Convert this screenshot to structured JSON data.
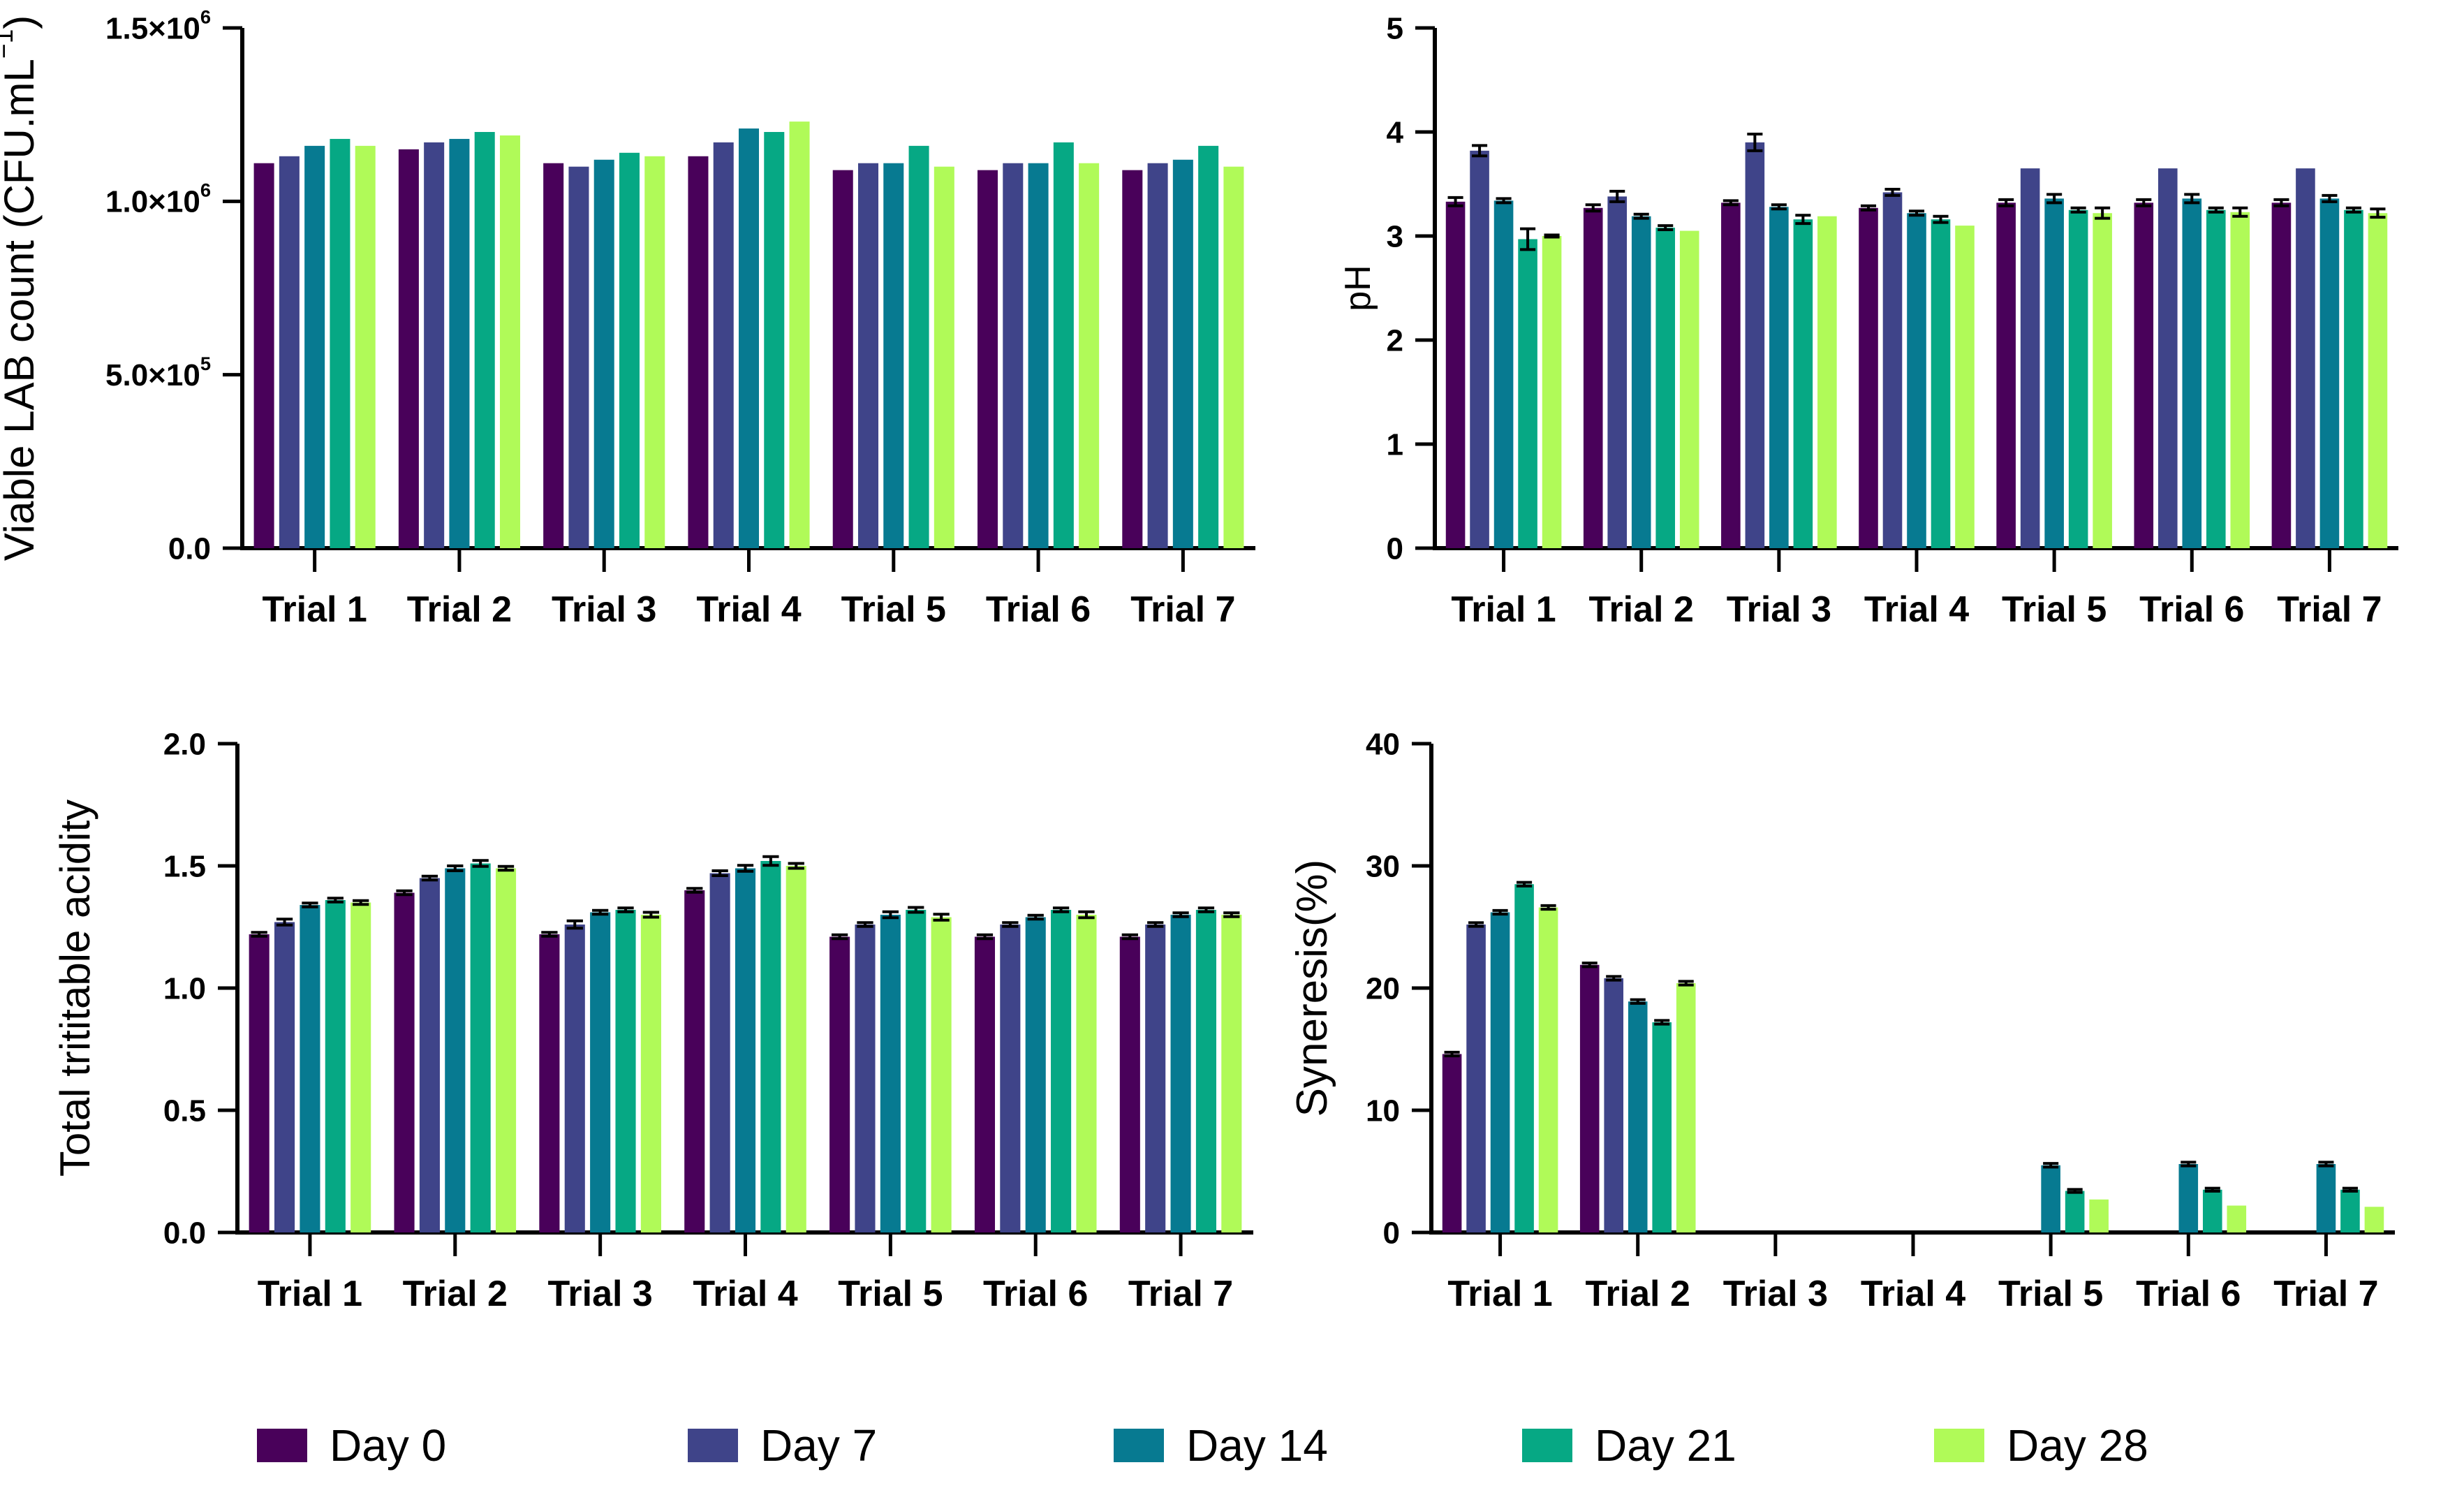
{
  "figure": {
    "background": "#ffffff"
  },
  "legend": {
    "position": "bottom",
    "items": [
      {
        "label": "Day 0",
        "color": "#49015A"
      },
      {
        "label": "Day 7",
        "color": "#3F4489"
      },
      {
        "label": "Day 14",
        "color": "#077A91"
      },
      {
        "label": "Day 21",
        "color": "#06A884"
      },
      {
        "label": "Day 28",
        "color": "#B0FA58"
      }
    ]
  },
  "chart_data": [
    {
      "type": "bar",
      "title_parts": [
        {
          "t": "Viable LAB count (CFU.mL"
        },
        {
          "t": "−1",
          "sup": true
        },
        {
          "t": ")"
        }
      ],
      "categories": [
        "Trial 1",
        "Trial 2",
        "Trial 3",
        "Trial 4",
        "Trial 5",
        "Trial 6",
        "Trial 7"
      ],
      "ylim": [
        0,
        1500000
      ],
      "grid": false,
      "yticks": [
        {
          "v": 0,
          "parts": [
            {
              "t": "0.0"
            }
          ]
        },
        {
          "v": 500000,
          "parts": [
            {
              "t": "5.0×10"
            },
            {
              "t": "5",
              "sup": true
            }
          ]
        },
        {
          "v": 1000000,
          "parts": [
            {
              "t": "1.0×10"
            },
            {
              "t": "6",
              "sup": true
            }
          ]
        },
        {
          "v": 1500000,
          "parts": [
            {
              "t": "1.5×10"
            },
            {
              "t": "6",
              "sup": true
            }
          ]
        }
      ],
      "series": [
        {
          "name": "Day 0",
          "values": [
            1110000,
            1150000,
            1110000,
            1130000,
            1090000,
            1090000,
            1090000
          ]
        },
        {
          "name": "Day 7",
          "values": [
            1130000,
            1170000,
            1100000,
            1170000,
            1110000,
            1110000,
            1110000
          ]
        },
        {
          "name": "Day 14",
          "values": [
            1160000,
            1180000,
            1120000,
            1210000,
            1110000,
            1110000,
            1120000
          ]
        },
        {
          "name": "Day 21",
          "values": [
            1180000,
            1200000,
            1140000,
            1200000,
            1160000,
            1170000,
            1160000
          ]
        },
        {
          "name": "Day 28",
          "values": [
            1160000,
            1190000,
            1130000,
            1230000,
            1100000,
            1110000,
            1100000
          ]
        }
      ]
    },
    {
      "type": "bar",
      "title_parts": [
        {
          "t": "pH"
        }
      ],
      "categories": [
        "Trial 1",
        "Trial 2",
        "Trial 3",
        "Trial 4",
        "Trial 5",
        "Trial 6",
        "Trial 7"
      ],
      "ylim": [
        0,
        5
      ],
      "grid": false,
      "yticks": [
        {
          "v": 0,
          "parts": [
            {
              "t": "0"
            }
          ]
        },
        {
          "v": 1,
          "parts": [
            {
              "t": "1"
            }
          ]
        },
        {
          "v": 2,
          "parts": [
            {
              "t": "2"
            }
          ]
        },
        {
          "v": 3,
          "parts": [
            {
              "t": "3"
            }
          ]
        },
        {
          "v": 4,
          "parts": [
            {
              "t": "4"
            }
          ]
        },
        {
          "v": 5,
          "parts": [
            {
              "t": "5"
            }
          ]
        }
      ],
      "series": [
        {
          "name": "Day 0",
          "values": [
            3.33,
            3.27,
            3.32,
            3.27,
            3.32,
            3.32,
            3.32
          ],
          "errors": [
            0.04,
            0.03,
            0.02,
            0.02,
            0.03,
            0.03,
            0.03
          ]
        },
        {
          "name": "Day 7",
          "values": [
            3.82,
            3.38,
            3.9,
            3.42,
            3.65,
            3.65,
            3.65
          ],
          "errors": [
            0.05,
            0.05,
            0.08,
            0.03,
            0,
            0,
            0
          ]
        },
        {
          "name": "Day 14",
          "values": [
            3.34,
            3.19,
            3.28,
            3.22,
            3.36,
            3.36,
            3.36
          ],
          "errors": [
            0.02,
            0.02,
            0.02,
            0.02,
            0.04,
            0.04,
            0.03
          ]
        },
        {
          "name": "Day 21",
          "values": [
            2.97,
            3.08,
            3.16,
            3.16,
            3.25,
            3.25,
            3.25
          ],
          "errors": [
            0.1,
            0.02,
            0.04,
            0.03,
            0.02,
            0.02,
            0.02
          ]
        },
        {
          "name": "Day 28",
          "values": [
            3.0,
            3.05,
            3.19,
            3.1,
            3.22,
            3.23,
            3.22
          ],
          "errors": [
            0.01,
            0,
            0,
            0,
            0.05,
            0.04,
            0.04
          ]
        }
      ]
    },
    {
      "type": "bar",
      "title_parts": [
        {
          "t": "Total trititable acidity"
        }
      ],
      "categories": [
        "Trial 1",
        "Trial 2",
        "Trial 3",
        "Trial 4",
        "Trial 5",
        "Trial 6",
        "Trial 7"
      ],
      "ylim": [
        0,
        2
      ],
      "grid": false,
      "yticks": [
        {
          "v": 0,
          "parts": [
            {
              "t": "0.0"
            }
          ]
        },
        {
          "v": 0.5,
          "parts": [
            {
              "t": "0.5"
            }
          ]
        },
        {
          "v": 1.0,
          "parts": [
            {
              "t": "1.0"
            }
          ]
        },
        {
          "v": 1.5,
          "parts": [
            {
              "t": "1.5"
            }
          ]
        },
        {
          "v": 2.0,
          "parts": [
            {
              "t": "2.0"
            }
          ]
        }
      ],
      "series": [
        {
          "name": "Day 0",
          "values": [
            1.22,
            1.39,
            1.22,
            1.4,
            1.21,
            1.21,
            1.21
          ],
          "errors": [
            0.008,
            0.008,
            0.008,
            0.008,
            0.008,
            0.008,
            0.008
          ]
        },
        {
          "name": "Day 7",
          "values": [
            1.27,
            1.45,
            1.26,
            1.47,
            1.26,
            1.26,
            1.26
          ],
          "errors": [
            0.012,
            0.008,
            0.015,
            0.01,
            0.008,
            0.008,
            0.008
          ]
        },
        {
          "name": "Day 14",
          "values": [
            1.34,
            1.49,
            1.31,
            1.49,
            1.3,
            1.29,
            1.3
          ],
          "errors": [
            0.008,
            0.01,
            0.008,
            0.012,
            0.012,
            0.008,
            0.008
          ]
        },
        {
          "name": "Day 21",
          "values": [
            1.36,
            1.51,
            1.32,
            1.52,
            1.32,
            1.32,
            1.32
          ],
          "errors": [
            0.008,
            0.012,
            0.008,
            0.018,
            0.01,
            0.008,
            0.008
          ]
        },
        {
          "name": "Day 28",
          "values": [
            1.35,
            1.49,
            1.3,
            1.5,
            1.29,
            1.3,
            1.3
          ],
          "errors": [
            0.008,
            0.008,
            0.01,
            0.01,
            0.012,
            0.012,
            0.008
          ]
        }
      ]
    },
    {
      "type": "bar",
      "title_parts": [
        {
          "t": "Syneresis(%)"
        }
      ],
      "categories": [
        "Trial 1",
        "Trial 2",
        "Trial 3",
        "Trial 4",
        "Trial 5",
        "Trial 6",
        "Trial 7"
      ],
      "ylim": [
        0,
        40
      ],
      "grid": false,
      "yticks": [
        {
          "v": 0,
          "parts": [
            {
              "t": "0"
            }
          ]
        },
        {
          "v": 10,
          "parts": [
            {
              "t": "10"
            }
          ]
        },
        {
          "v": 20,
          "parts": [
            {
              "t": "20"
            }
          ]
        },
        {
          "v": 30,
          "parts": [
            {
              "t": "30"
            }
          ]
        },
        {
          "v": 40,
          "parts": [
            {
              "t": "40"
            }
          ]
        }
      ],
      "series": [
        {
          "name": "Day 0",
          "values": [
            14.6,
            21.9,
            0,
            0,
            0,
            0,
            0
          ],
          "errors": [
            0.15,
            0.15,
            0,
            0,
            0,
            0,
            0
          ]
        },
        {
          "name": "Day 7",
          "values": [
            25.2,
            20.8,
            0,
            0,
            0,
            0,
            0
          ],
          "errors": [
            0.15,
            0.15,
            0,
            0,
            0,
            0,
            0
          ]
        },
        {
          "name": "Day 14",
          "values": [
            26.2,
            18.9,
            0,
            0,
            5.5,
            5.6,
            5.6
          ],
          "errors": [
            0.15,
            0.15,
            0,
            0,
            0.15,
            0.15,
            0.15
          ]
        },
        {
          "name": "Day 21",
          "values": [
            28.5,
            17.2,
            0,
            0,
            3.4,
            3.5,
            3.5
          ],
          "errors": [
            0.15,
            0.15,
            0,
            0,
            0.12,
            0.12,
            0.12
          ]
        },
        {
          "name": "Day 28",
          "values": [
            26.6,
            20.4,
            0,
            0,
            2.7,
            2.2,
            2.1
          ],
          "errors": [
            0.15,
            0.15,
            0,
            0,
            0,
            0,
            0
          ]
        }
      ]
    }
  ]
}
